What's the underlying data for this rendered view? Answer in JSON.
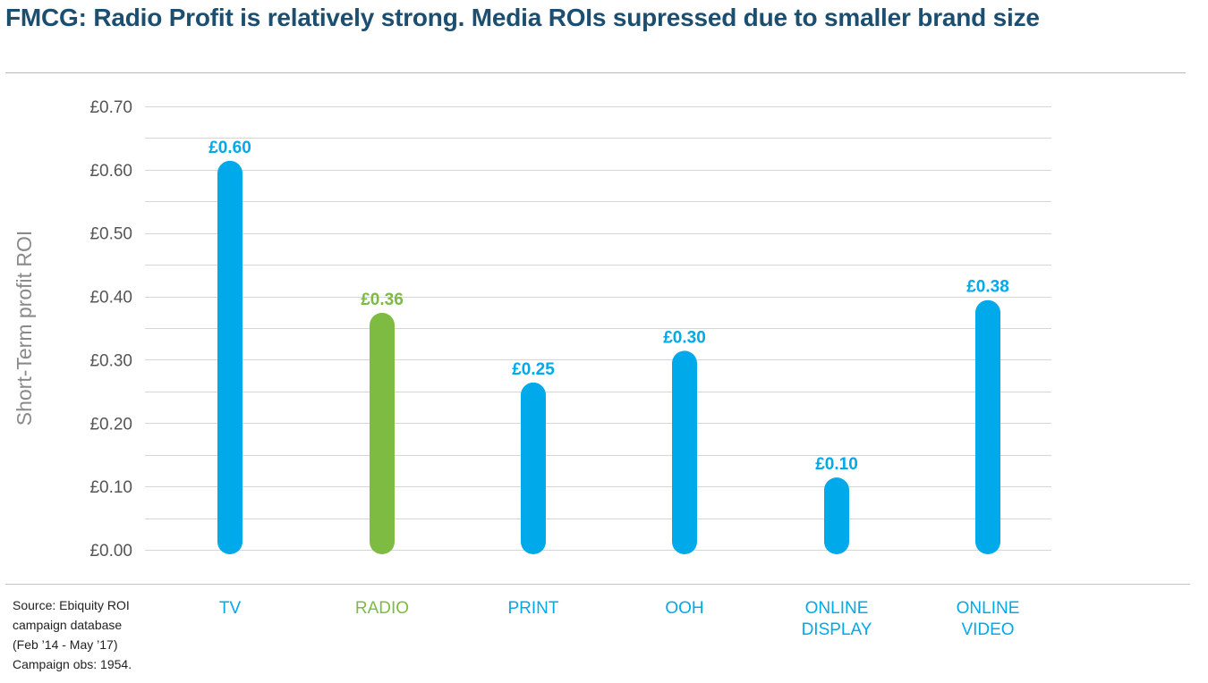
{
  "title": "FMCG: Radio Profit is relatively strong. Media ROIs supressed due to smaller brand size",
  "source_lines": [
    "Source: Ebiquity ROI",
    "campaign database",
    "(Feb ’14 - May ’17)",
    "Campaign obs: 1954."
  ],
  "colors": {
    "blue": "#00a9e9",
    "green": "#7dbb42",
    "title": "#1c4e70",
    "axis_text": "#555555",
    "grid": "#d6d6d6"
  },
  "chart_data": {
    "type": "bar",
    "ylabel": "Short-Term profit ROI",
    "ylim": [
      0,
      0.7
    ],
    "yticks": [
      "£0.00",
      "£0.10",
      "£0.20",
      "£0.30",
      "£0.40",
      "£0.50",
      "£0.60",
      "£0.70"
    ],
    "ytick_values": [
      0,
      0.1,
      0.2,
      0.3,
      0.4,
      0.5,
      0.6,
      0.7
    ],
    "grid": true,
    "categories": [
      {
        "lines": [
          "TV"
        ],
        "value": 0.6,
        "label": "£0.60",
        "color": "#00a9e9"
      },
      {
        "lines": [
          "RADIO"
        ],
        "value": 0.36,
        "label": "£0.36",
        "color": "#7dbb42"
      },
      {
        "lines": [
          "PRINT"
        ],
        "value": 0.25,
        "label": "£0.25",
        "color": "#00a9e9"
      },
      {
        "lines": [
          "OOH"
        ],
        "value": 0.3,
        "label": "£0.30",
        "color": "#00a9e9"
      },
      {
        "lines": [
          "ONLINE",
          "DISPLAY"
        ],
        "value": 0.1,
        "label": "£0.10",
        "color": "#00a9e9"
      },
      {
        "lines": [
          "ONLINE",
          "VIDEO"
        ],
        "value": 0.38,
        "label": "£0.38",
        "color": "#00a9e9"
      }
    ]
  }
}
